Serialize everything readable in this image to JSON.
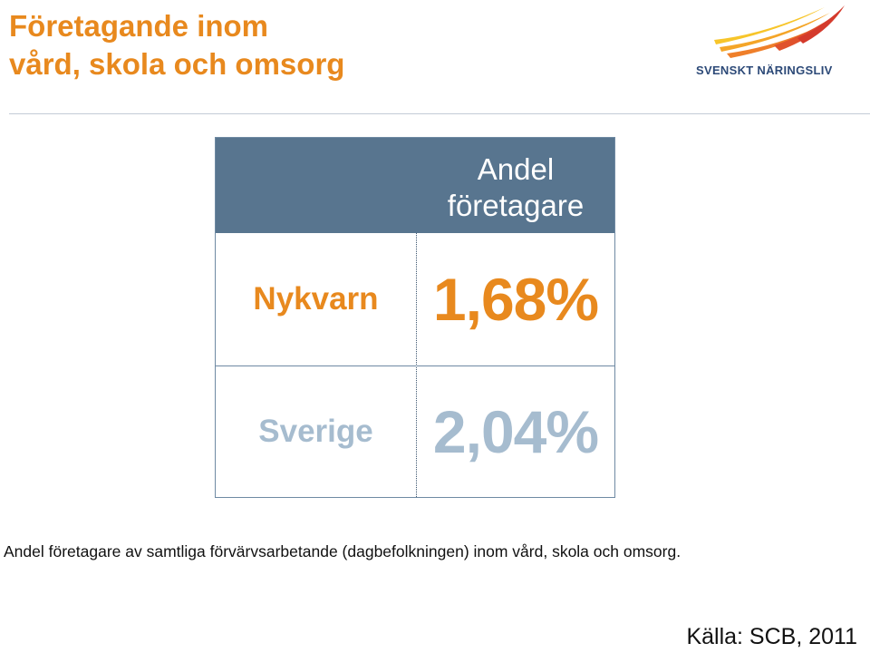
{
  "slide": {
    "title_line1": "Företagande inom",
    "title_line2": "vård, skola och omsorg",
    "logo_text": "SVENSKT NÄRINGSLIV",
    "table": {
      "column_header_line1": "Andel",
      "column_header_line2": "företagare",
      "rows": [
        {
          "label": "Nykvarn",
          "value": "1,68%",
          "color": "#e8891e"
        },
        {
          "label": "Sverige",
          "value": "2,04%",
          "color": "#a6bccf"
        }
      ]
    },
    "caption": "Andel företagare av samtliga förvärvsarbetande (dagbefolkningen) inom vård, skola och omsorg.",
    "source": "Källa: SCB, 2011"
  },
  "colors": {
    "accent_orange": "#e8891e",
    "header_blue": "#58758f",
    "muted_blue": "#a6bccf",
    "logo_navy": "#2d4a78"
  },
  "icons": {
    "logo": "flame-swoosh-icon"
  }
}
